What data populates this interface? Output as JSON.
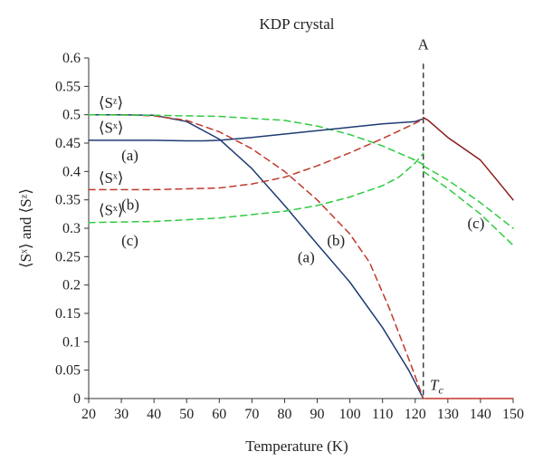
{
  "chart_data": {
    "type": "line",
    "title": "KDP crystal",
    "xlabel": "Temperature (K)",
    "ylabel": "⟨Sˣ⟩ and ⟨Sᶻ⟩",
    "xlim": [
      20,
      150
    ],
    "ylim": [
      0,
      0.6
    ],
    "xticks": [
      20,
      30,
      40,
      50,
      60,
      70,
      80,
      90,
      100,
      110,
      120,
      130,
      140,
      150
    ],
    "yticks": [
      0,
      0.05,
      0.1,
      0.15,
      0.2,
      0.25,
      0.3,
      0.35,
      0.4,
      0.45,
      0.5,
      0.55,
      0.6
    ],
    "yticklabels": [
      "0",
      "0.05",
      "0.1",
      "0.15",
      "0.2",
      "0.25",
      "0.3",
      "0.35",
      "0.4",
      "0.45",
      "0.5",
      "0.55",
      "0.6"
    ],
    "grid": false,
    "series": [
      {
        "color": "#1f3b73",
        "dash": "solid",
        "x": [
          20,
          30,
          40,
          50,
          60,
          70,
          80,
          90,
          100,
          110,
          118,
          122.5
        ],
        "y": [
          0.5,
          0.5,
          0.499,
          0.488,
          0.457,
          0.405,
          0.34,
          0.272,
          0.205,
          0.125,
          0.05,
          0.0
        ]
      },
      {
        "color": "#c0392b",
        "dash": "dashed",
        "x": [
          20,
          30,
          40,
          50,
          60,
          70,
          80,
          90,
          100,
          106,
          112,
          118,
          122.5
        ],
        "y": [
          0.5,
          0.5,
          0.498,
          0.49,
          0.47,
          0.44,
          0.4,
          0.35,
          0.29,
          0.24,
          0.16,
          0.07,
          0.0
        ]
      },
      {
        "color": "#2ecc40",
        "dash": "dashed",
        "x": [
          20,
          40,
          60,
          80,
          90,
          100,
          110,
          120,
          122.5
        ],
        "y": [
          0.5,
          0.499,
          0.497,
          0.49,
          0.48,
          0.465,
          0.445,
          0.42,
          0.412
        ]
      },
      {
        "color": "#1f3b73",
        "dash": "solid",
        "x": [
          20,
          30,
          40,
          50,
          55,
          60,
          70,
          80,
          90,
          100,
          110,
          120,
          122.5
        ],
        "y": [
          0.455,
          0.455,
          0.455,
          0.454,
          0.454,
          0.455,
          0.46,
          0.466,
          0.472,
          0.478,
          0.484,
          0.488,
          0.493
        ]
      },
      {
        "color": "#c0392b",
        "dash": "dashed",
        "x": [
          20,
          40,
          60,
          70,
          80,
          90,
          100,
          110,
          120,
          122.5
        ],
        "y": [
          0.368,
          0.368,
          0.371,
          0.378,
          0.39,
          0.41,
          0.433,
          0.458,
          0.485,
          0.493
        ]
      },
      {
        "color": "#2ecc40",
        "dash": "dashed",
        "x": [
          20,
          40,
          60,
          80,
          90,
          100,
          110,
          115,
          120,
          122.5
        ],
        "y": [
          0.31,
          0.312,
          0.318,
          0.33,
          0.34,
          0.355,
          0.375,
          0.39,
          0.415,
          0.432
        ]
      },
      {
        "color": "#8b1a1a",
        "dash": "solid",
        "x": [
          122.5,
          124,
          130,
          135,
          140,
          145,
          150
        ],
        "y": [
          0.495,
          0.49,
          0.46,
          0.44,
          0.42,
          0.385,
          0.35
        ]
      },
      {
        "color": "#2ecc40",
        "dash": "dashed",
        "x": [
          122.5,
          130,
          140,
          150
        ],
        "y": [
          0.41,
          0.385,
          0.345,
          0.3
        ]
      },
      {
        "color": "#2ecc40",
        "dash": "dashed",
        "x": [
          122.5,
          130,
          140,
          150
        ],
        "y": [
          0.4,
          0.37,
          0.325,
          0.27
        ]
      },
      {
        "color": "#c0392b",
        "dash": "solid",
        "x": [
          123,
          150
        ],
        "y": [
          0.0,
          0.0
        ]
      }
    ],
    "annotations": [
      {
        "text": "⟨Sᶻ⟩",
        "x": 23,
        "y": 0.512
      },
      {
        "text": "⟨Sˣ⟩",
        "x": 23,
        "y": 0.468
      },
      {
        "text": "(a)",
        "x": 30,
        "y": 0.42
      },
      {
        "text": "⟨Sˣ⟩",
        "x": 23,
        "y": 0.38
      },
      {
        "text": "(b)",
        "x": 30,
        "y": 0.333
      },
      {
        "text": "⟨Sˣ⟩",
        "x": 23,
        "y": 0.323
      },
      {
        "text": "(c)",
        "x": 30,
        "y": 0.27
      },
      {
        "text": "(a)",
        "x": 84,
        "y": 0.24
      },
      {
        "text": "(b)",
        "x": 93,
        "y": 0.27
      },
      {
        "text": "(c)",
        "x": 136,
        "y": 0.3
      },
      {
        "text": "A",
        "x": 122.5,
        "y": 0.615
      },
      {
        "text": "Tc",
        "x": 124.5,
        "y": 0.015
      }
    ],
    "vline": {
      "x": 122.5,
      "color": "#222222",
      "dash": "dashed"
    }
  }
}
